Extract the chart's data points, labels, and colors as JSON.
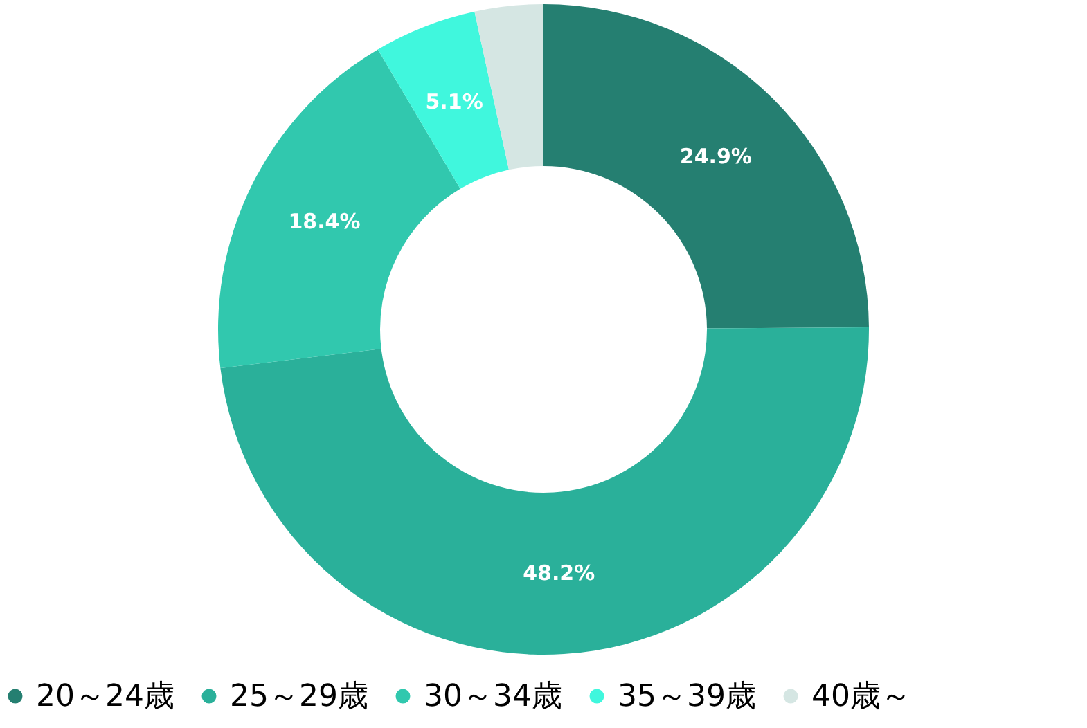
{
  "chart_data": {
    "type": "donut",
    "categories": [
      "20～24歳",
      "25～29歳",
      "30～34歳",
      "35～39歳",
      "40歳～"
    ],
    "values": [
      24.9,
      48.2,
      18.4,
      5.1,
      3.4
    ],
    "colors": [
      "#257f71",
      "#2ab09a",
      "#31c8ae",
      "#40f7dd",
      "#d5e6e3"
    ],
    "value_labels": [
      "24.9%",
      "48.2%",
      "18.4%",
      "5.1%",
      null
    ],
    "legend": "bottom"
  }
}
